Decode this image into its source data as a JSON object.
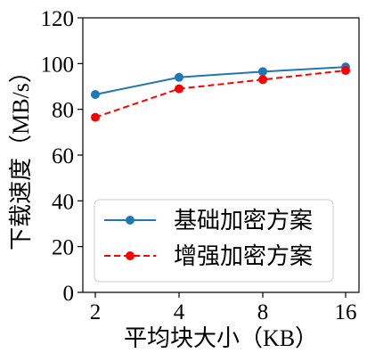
{
  "chart_data": {
    "type": "line",
    "xlabel": "平均块大小（KB）",
    "ylabel": "下载速度（MB/s）",
    "categories": [
      "2",
      "4",
      "8",
      "16"
    ],
    "x_scale": "log2",
    "ylim": [
      0,
      120
    ],
    "yticks": [
      "0",
      "20",
      "40",
      "60",
      "80",
      "100",
      "120"
    ],
    "grid": false,
    "legend_position": "lower-right",
    "series": [
      {
        "name": "基础加密方案",
        "values": [
          86.5,
          94,
          96.5,
          98.5
        ],
        "color": "#1f77b4",
        "line_style": "solid",
        "marker": "circle"
      },
      {
        "name": "增强加密方案",
        "values": [
          76.5,
          89,
          93,
          97
        ],
        "color": "#ff0000",
        "line_style": "dashed",
        "marker": "circle"
      }
    ]
  }
}
